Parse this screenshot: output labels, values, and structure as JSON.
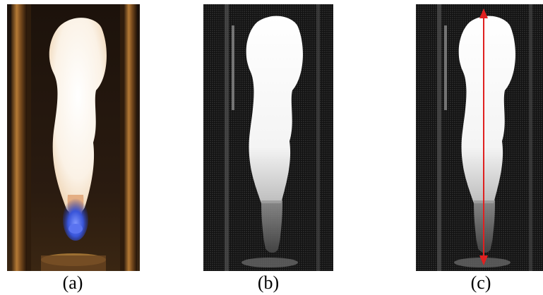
{
  "figure": {
    "panels": [
      {
        "id": "a",
        "caption": "(a)",
        "kind": "color flame photograph"
      },
      {
        "id": "b",
        "caption": "(b)",
        "kind": "grayscale flame image"
      },
      {
        "id": "c",
        "caption": "(c)",
        "kind": "grayscale flame image with flame-length arrow"
      }
    ],
    "colors": {
      "flame_core": "#fbf6ee",
      "flame_blue": "#3b5ce0",
      "background_dark": "#1a1410",
      "wall_copper": "#a8742f",
      "arrow": "#e02020"
    }
  }
}
